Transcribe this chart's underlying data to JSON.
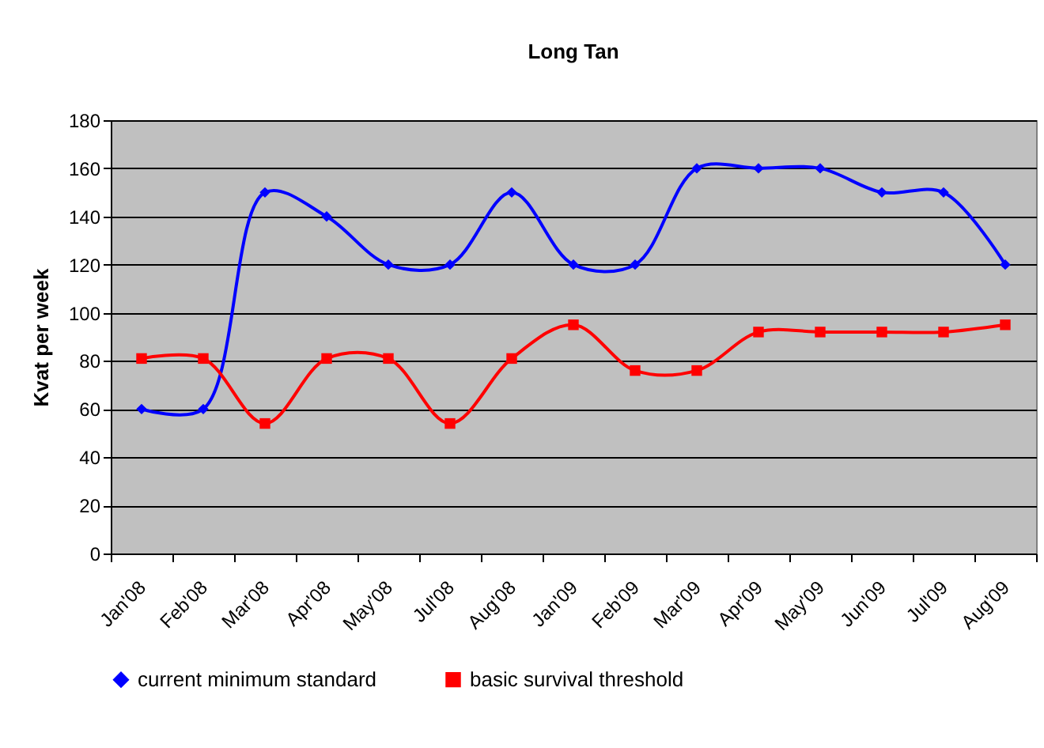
{
  "chart_data": {
    "type": "line",
    "title": "Long Tan",
    "ylabel": "Kvat per week",
    "categories": [
      "Jan'08",
      "Feb'08",
      "Mar'08",
      "Apr'08",
      "May'08",
      "Jul'08",
      "Aug'08",
      "Jan'09",
      "Feb'09",
      "Mar'09",
      "Apr'09",
      "May'09",
      "Jun'09",
      "Jul'09",
      "Aug'09"
    ],
    "series": [
      {
        "name": "current minimum standard",
        "color": "#0000ff",
        "marker": "diamond",
        "values": [
          60,
          60,
          150,
          140,
          120,
          120,
          150,
          120,
          120,
          160,
          160,
          160,
          150,
          150,
          120
        ]
      },
      {
        "name": "basic survival threshold",
        "color": "#ff0000",
        "marker": "square",
        "values": [
          81,
          81,
          54,
          81,
          81,
          54,
          81,
          95,
          76,
          76,
          92,
          92,
          92,
          92,
          95
        ]
      }
    ],
    "ylim": [
      0,
      180
    ],
    "yticks": [
      0,
      20,
      40,
      60,
      80,
      100,
      120,
      140,
      160,
      180
    ],
    "grid": "y",
    "legend": "bottom",
    "line_style": "solid"
  }
}
